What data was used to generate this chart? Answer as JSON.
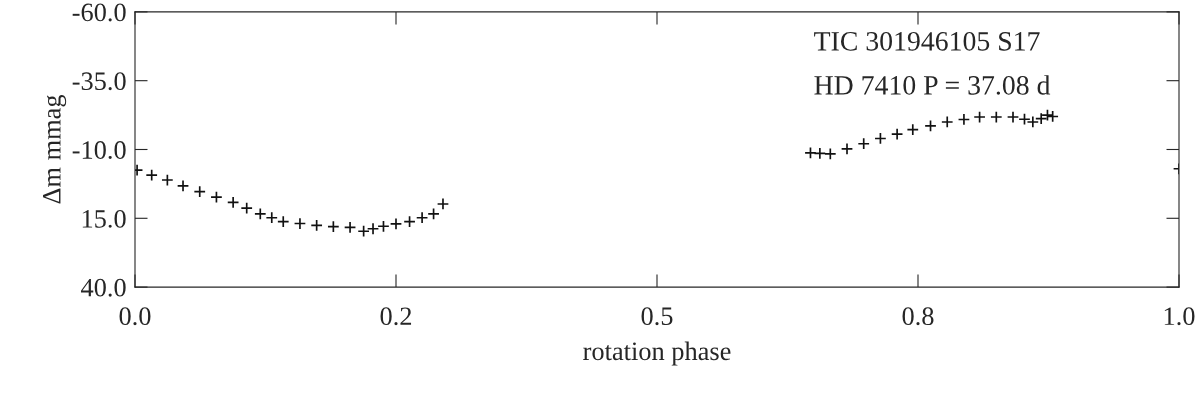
{
  "chart_data": {
    "type": "scatter",
    "xlabel": "rotation phase",
    "ylabel": "Δm mmag",
    "annotations": [
      "TIC 301946105 S17",
      "HD 7410 P = 37.08 d"
    ],
    "marker": "cross",
    "grid": false,
    "legend": false,
    "xlim": [
      0,
      1
    ],
    "xticks": [
      {
        "value": 0,
        "label": "0.0"
      },
      {
        "value": 0.25,
        "label": "0.2"
      },
      {
        "value": 0.5,
        "label": "0.5"
      },
      {
        "value": 0.75,
        "label": "0.8"
      },
      {
        "value": 1,
        "label": "1.0"
      }
    ],
    "ylim": [
      40,
      -60
    ],
    "yticks": [
      {
        "value": -60,
        "label": "-60.0"
      },
      {
        "value": -35,
        "label": "-35.0"
      },
      {
        "value": -10,
        "label": "-10.0"
      },
      {
        "value": 15,
        "label": "15.0"
      },
      {
        "value": 40,
        "label": "40.0"
      }
    ],
    "series": [
      {
        "color": "#111111",
        "x": [
          0.002,
          0.016,
          0.031,
          0.046,
          0.062,
          0.078,
          0.094,
          0.107,
          0.12,
          0.131,
          0.142,
          0.158,
          0.174,
          0.19,
          0.206,
          0.219,
          0.228,
          0.238,
          0.25,
          0.263,
          0.275,
          0.286,
          0.295,
          0.647,
          0.656,
          0.666,
          0.682,
          0.698,
          0.714,
          0.73,
          0.745,
          0.762,
          0.778,
          0.794,
          0.809,
          0.825,
          0.841,
          0.852,
          0.86,
          0.868,
          0.874,
          0.879,
          1.0
        ],
        "values": [
          -2.5,
          -0.7,
          1.1,
          3.2,
          5.3,
          7.3,
          9.2,
          11.3,
          13.4,
          14.8,
          16.2,
          16.9,
          17.6,
          18.0,
          18.3,
          19.7,
          18.8,
          17.9,
          17.0,
          16.2,
          14.8,
          13.4,
          9.8,
          -8.8,
          -8.6,
          -8.4,
          -10.2,
          -12.1,
          -14.0,
          -15.6,
          -17.2,
          -18.6,
          -20.0,
          -20.9,
          -21.8,
          -21.8,
          -21.8,
          -21.0,
          -20.0,
          -21.2,
          -22.5,
          -22.0,
          -3.0
        ]
      }
    ]
  }
}
